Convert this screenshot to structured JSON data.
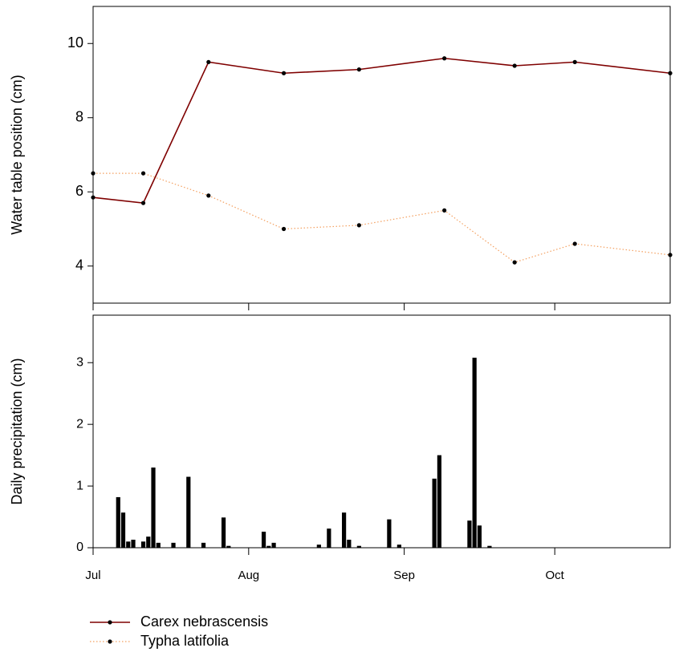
{
  "chart_data": [
    {
      "type": "line",
      "ylabel": "Water table position (cm)",
      "xlim": [
        0,
        115
      ],
      "xticks": [
        0,
        31,
        62,
        92
      ],
      "ylim": [
        3,
        11
      ],
      "yticks": [
        4,
        6,
        8,
        10
      ],
      "series": [
        {
          "name": "Carex nebrascensis",
          "color": "#7f0000",
          "linestyle": "solid",
          "x": [
            0,
            10,
            23,
            38,
            53,
            70,
            84,
            96,
            115
          ],
          "values": [
            5.85,
            5.7,
            9.5,
            9.2,
            9.3,
            9.6,
            9.4,
            9.5,
            9.2
          ]
        },
        {
          "name": "Typha latifolia",
          "color": "#f4a060",
          "linestyle": "dotted",
          "x": [
            0,
            10,
            23,
            38,
            53,
            70,
            84,
            96,
            115
          ],
          "values": [
            6.5,
            6.5,
            5.9,
            5.0,
            5.1,
            5.5,
            4.1,
            4.6,
            4.3
          ]
        }
      ]
    },
    {
      "type": "bar",
      "ylabel": "Daily precipitation (cm)",
      "xlim": [
        0,
        115
      ],
      "xticks": [
        {
          "value": 0,
          "label": "Jul"
        },
        {
          "value": 31,
          "label": "Aug"
        },
        {
          "value": 62,
          "label": "Sep"
        },
        {
          "value": 92,
          "label": "Oct"
        }
      ],
      "ylim": [
        0,
        3.77
      ],
      "yticks": [
        0,
        1,
        2,
        3
      ],
      "color": "#000000",
      "x": [
        5,
        6,
        7,
        8,
        10,
        11,
        12,
        13,
        16,
        19,
        22,
        26,
        27,
        34,
        35,
        36,
        45,
        47,
        50,
        51,
        53,
        59,
        61,
        68,
        69,
        75,
        76,
        77,
        79
      ],
      "values": [
        0.82,
        0.57,
        0.1,
        0.13,
        0.1,
        0.18,
        1.3,
        0.08,
        0.08,
        1.15,
        0.08,
        0.49,
        0.03,
        0.26,
        0.03,
        0.08,
        0.05,
        0.31,
        0.57,
        0.13,
        0.03,
        0.46,
        0.05,
        1.12,
        1.5,
        0.44,
        3.08,
        0.36,
        0.03
      ]
    }
  ]
}
